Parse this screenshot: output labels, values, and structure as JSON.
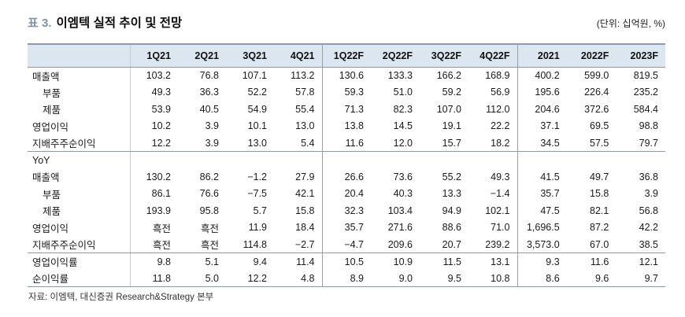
{
  "header": {
    "table_label": "표 3.",
    "title": "이엠텍 실적 추이 및 전망",
    "unit": "(단위: 십억원, %)"
  },
  "table": {
    "columns": [
      "",
      "1Q21",
      "2Q21",
      "3Q21",
      "4Q21",
      "1Q22F",
      "2Q22F",
      "3Q22F",
      "4Q22F",
      "2021",
      "2022F",
      "2023F"
    ],
    "rows": [
      {
        "label": "매출액",
        "indent": false,
        "section_end": false,
        "values": [
          "103.2",
          "76.8",
          "107.1",
          "113.2",
          "130.6",
          "133.3",
          "166.2",
          "168.9",
          "400.2",
          "599.0",
          "819.5"
        ]
      },
      {
        "label": "부품",
        "indent": true,
        "section_end": false,
        "values": [
          "49.3",
          "36.3",
          "52.2",
          "57.8",
          "59.3",
          "51.0",
          "59.2",
          "56.9",
          "195.6",
          "226.4",
          "235.2"
        ]
      },
      {
        "label": "제품",
        "indent": true,
        "section_end": false,
        "values": [
          "53.9",
          "40.5",
          "54.9",
          "55.4",
          "71.3",
          "82.3",
          "107.0",
          "112.0",
          "204.6",
          "372.6",
          "584.4"
        ]
      },
      {
        "label": "영업이익",
        "indent": false,
        "section_end": false,
        "values": [
          "10.2",
          "3.9",
          "10.1",
          "13.0",
          "13.8",
          "14.5",
          "19.1",
          "22.2",
          "37.1",
          "69.5",
          "98.8"
        ]
      },
      {
        "label": "지배주주순이익",
        "indent": false,
        "section_end": true,
        "values": [
          "12.2",
          "3.9",
          "13.0",
          "5.4",
          "11.6",
          "12.0",
          "15.7",
          "18.2",
          "34.5",
          "57.5",
          "79.7"
        ]
      },
      {
        "label": "YoY",
        "indent": false,
        "section_end": false,
        "values": [
          "",
          "",
          "",
          "",
          "",
          "",
          "",
          "",
          "",
          "",
          ""
        ]
      },
      {
        "label": "매출액",
        "indent": false,
        "section_end": false,
        "values": [
          "130.2",
          "86.2",
          "−1.2",
          "27.9",
          "26.6",
          "73.6",
          "55.2",
          "49.3",
          "41.5",
          "49.7",
          "36.8"
        ]
      },
      {
        "label": "부품",
        "indent": true,
        "section_end": false,
        "values": [
          "86.1",
          "76.6",
          "−7.5",
          "42.1",
          "20.4",
          "40.3",
          "13.3",
          "−1.4",
          "35.7",
          "15.8",
          "3.9"
        ]
      },
      {
        "label": "제품",
        "indent": true,
        "section_end": false,
        "values": [
          "193.9",
          "95.8",
          "5.7",
          "15.8",
          "32.3",
          "103.4",
          "94.9",
          "102.1",
          "47.5",
          "82.1",
          "56.8"
        ]
      },
      {
        "label": "영업이익",
        "indent": false,
        "section_end": false,
        "values": [
          "흑전",
          "흑전",
          "11.9",
          "18.4",
          "35.7",
          "271.6",
          "88.6",
          "71.0",
          "1,696.5",
          "87.2",
          "42.2"
        ]
      },
      {
        "label": "지배주주순이익",
        "indent": false,
        "section_end": true,
        "values": [
          "흑전",
          "흑전",
          "114.8",
          "−2.7",
          "−4.7",
          "209.6",
          "20.7",
          "239.2",
          "3,573.0",
          "67.0",
          "38.5"
        ]
      },
      {
        "label": "영업이익률",
        "indent": false,
        "section_end": false,
        "values": [
          "9.8",
          "5.1",
          "9.4",
          "11.4",
          "10.5",
          "10.9",
          "11.5",
          "13.1",
          "9.3",
          "11.6",
          "12.1"
        ]
      },
      {
        "label": "순이익률",
        "indent": false,
        "section_end": true,
        "values": [
          "11.8",
          "5.0",
          "12.2",
          "4.8",
          "8.9",
          "9.0",
          "9.5",
          "10.8",
          "8.6",
          "9.6",
          "9.7"
        ]
      }
    ]
  },
  "footer": {
    "source": "자료: 이엠텍, 대신증권 Research&Strategy 본부"
  },
  "colors": {
    "header_bg": "#dce6f1",
    "top_border": "#8b9cb0",
    "accent_blue": "#7d93ab",
    "separator": "#8f99a3"
  }
}
